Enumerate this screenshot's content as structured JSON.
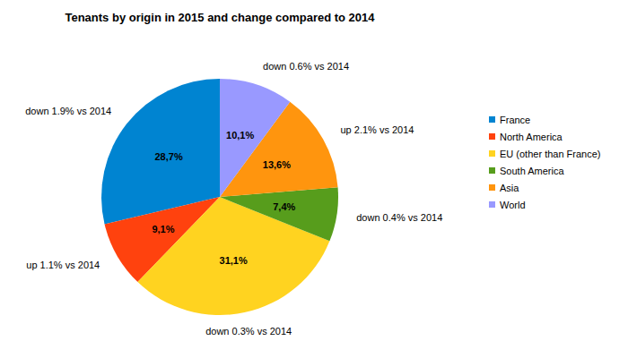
{
  "chart_data": {
    "type": "pie",
    "title": "Tenants by origin in 2015 and change compared to 2014",
    "categories": [
      "France",
      "North America",
      "EU (other than France)",
      "South America",
      "Asia",
      "World"
    ],
    "values": [
      28.7,
      9.1,
      31.1,
      7.4,
      13.6,
      10.1
    ],
    "value_labels": [
      "28,7%",
      "9,1%",
      "31,1%",
      "7,4%",
      "13,6%",
      "10,1%"
    ],
    "annotations": [
      "down 1.9% vs 2014",
      "up 1.1% vs 2014",
      "down 0.3% vs 2014",
      "down 0.4% vs 2014",
      "up 2.1% vs 2014",
      "down 0.6% vs 2014"
    ],
    "colors": [
      "#0084d1",
      "#ff420e",
      "#ffd320",
      "#579d1c",
      "#ff950e",
      "#9999ff"
    ],
    "data_labels": true,
    "legend": "right"
  }
}
